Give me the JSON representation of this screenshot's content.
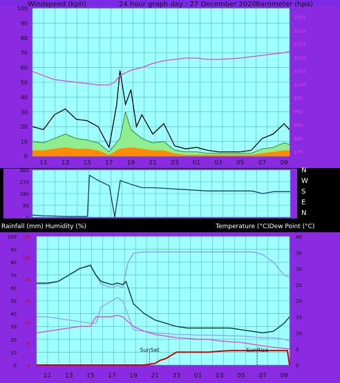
{
  "colors": {
    "frame": "#8A2BE2",
    "plot_bg": "#A0FFFF",
    "grid": "#4AB7B7",
    "header_bg": "#7B2BE6",
    "black_line": "#000000",
    "magenta": "#E040E0",
    "orange": "#FF8C00",
    "green": "#90EE90",
    "navy": "#1A3A6B",
    "light_blue": "#8FA8FF",
    "red": "#D00000",
    "dark_green": "#004030"
  },
  "chart_data": [
    {
      "type": "line",
      "title": "24 hour graph day : 27 December 2020",
      "ylabel_left": "Windspeed (kph)",
      "ylabel_right": "Barometer (hpa)",
      "x_ticks": [
        "11",
        "13",
        "15",
        "17",
        "19",
        "21",
        "23",
        "01",
        "03",
        "05",
        "07",
        "09"
      ],
      "y_left_ticks": [
        "100",
        "90",
        "80",
        "70",
        "60",
        "50",
        "40",
        "30",
        "20",
        "10",
        "0"
      ],
      "y_right_ticks": [
        "1025",
        "1020",
        "1015",
        "1010",
        "1005",
        "1000",
        "995",
        "990",
        "985",
        "980",
        "975"
      ],
      "ylim_left": [
        0,
        100
      ],
      "ylim_right": [
        972.5,
        1027.5
      ],
      "series": [
        {
          "key": "gust",
          "x": [
            10,
            11,
            12,
            13,
            14,
            15,
            16,
            17,
            17.7,
            18,
            18.5,
            19,
            19.5,
            20,
            21,
            22,
            23,
            24,
            25,
            26,
            27,
            28,
            29,
            30,
            31,
            32,
            33,
            33.5
          ],
          "values": [
            20,
            18,
            28,
            32,
            25,
            24,
            20,
            6,
            35,
            58,
            35,
            45,
            20,
            28,
            15,
            22,
            7,
            5,
            6,
            4,
            3,
            3,
            3,
            4,
            12,
            15,
            22,
            18
          ]
        },
        {
          "key": "average",
          "x": [
            10,
            11,
            12,
            13,
            14,
            15,
            16,
            17,
            18,
            18.5,
            19,
            20,
            21,
            22,
            23,
            24,
            25,
            26,
            27,
            28,
            29,
            30,
            31,
            32,
            33,
            33.5
          ],
          "values": [
            10,
            9,
            12,
            15,
            12,
            11,
            9,
            3,
            12,
            30,
            18,
            12,
            9,
            10,
            4,
            3,
            3,
            2,
            2,
            2,
            2,
            2,
            5,
            6,
            9,
            8
          ]
        },
        {
          "key": "low",
          "x": [
            10,
            11,
            12,
            13,
            14,
            15,
            16,
            17,
            18,
            19,
            20,
            21,
            22,
            23,
            24,
            25,
            26,
            27,
            28,
            29,
            30,
            31,
            32,
            33,
            33.5
          ],
          "values": [
            4,
            4,
            5,
            6,
            5,
            5,
            4,
            1,
            5,
            6,
            5,
            4,
            4,
            2,
            1,
            1,
            1,
            1,
            1,
            1,
            1,
            2,
            3,
            4,
            4
          ]
        },
        {
          "key": "barometer",
          "x": [
            10,
            11,
            12,
            13,
            14,
            15,
            16,
            17,
            17.5,
            18,
            19,
            20,
            21,
            22,
            23,
            24,
            25,
            26,
            27,
            28,
            29,
            30,
            31,
            32,
            33,
            33.5
          ],
          "values": [
            1004,
            1002.5,
            1001,
            1000.5,
            1000,
            999.5,
            999,
            999,
            1000,
            1002.5,
            1004.5,
            1005.5,
            1007,
            1008,
            1008.5,
            1009,
            1009,
            1008.5,
            1008.5,
            1008.7,
            1009,
            1009.5,
            1010,
            1010.5,
            1011,
            1011.5
          ]
        }
      ]
    },
    {
      "type": "line",
      "ylabel_right": [
        "N",
        "W",
        "S",
        "E",
        "N"
      ],
      "y_left_ticks": [
        "360",
        "270",
        "180",
        "90",
        "0"
      ],
      "ylim": [
        0,
        360
      ],
      "series": [
        {
          "key": "direction",
          "x": [
            10,
            11,
            12,
            13,
            14,
            15,
            15.2,
            16,
            17,
            17.5,
            18,
            19,
            20,
            21,
            22,
            23,
            24,
            25,
            26,
            27,
            28,
            29,
            30,
            31,
            32,
            33,
            33.5
          ],
          "values": [
            15,
            10,
            8,
            5,
            5,
            5,
            320,
            280,
            240,
            0,
            280,
            250,
            225,
            225,
            220,
            215,
            210,
            205,
            200,
            200,
            200,
            200,
            200,
            180,
            195,
            195,
            195
          ]
        }
      ]
    },
    {
      "type": "line",
      "ylabel_left": "Rainfall (mm)  Humidity (%)",
      "ylabel_right": "Temperature (°C)Dew Point (°C)",
      "x_ticks": [
        "11",
        "13",
        "15",
        "17",
        "19",
        "21",
        "23",
        "01",
        "03",
        "05",
        "07",
        "09"
      ],
      "y_left_ticks": [
        "100",
        "90",
        "80",
        "70",
        "60",
        "50",
        "40",
        "30",
        "20",
        "10",
        "0"
      ],
      "y_rain_ticks": [
        "30",
        "25",
        "20",
        "15",
        "10",
        "5",
        "0"
      ],
      "y_right_ticks": [
        "40",
        "35",
        "30",
        "25",
        "20",
        "15",
        "10",
        "5",
        "0"
      ],
      "ylim_left": [
        0,
        100
      ],
      "ylim_right": [
        0,
        40
      ],
      "annotations": [
        "SunSet",
        "SunRise"
      ],
      "series": [
        {
          "key": "humidity",
          "x": [
            10,
            11,
            12,
            13,
            14,
            15,
            15.5,
            16,
            17,
            17.5,
            18,
            18.5,
            19,
            20,
            21,
            22,
            23,
            24,
            25,
            26,
            27,
            28,
            29,
            30,
            31,
            32,
            33,
            33.5
          ],
          "values": [
            63,
            63,
            65,
            70,
            75,
            78,
            70,
            63,
            60,
            62,
            60,
            80,
            87,
            88,
            88,
            88,
            88,
            88,
            88,
            88,
            88,
            88,
            88,
            88,
            86,
            80,
            70,
            68
          ]
        },
        {
          "key": "temperature",
          "x": [
            10,
            11,
            12,
            13,
            14,
            15,
            15.5,
            16,
            17,
            17.5,
            18,
            19,
            20,
            21,
            22,
            23,
            24,
            25,
            26,
            27,
            28,
            29,
            30,
            31,
            32,
            33,
            33.5
          ],
          "values": [
            15,
            15,
            14.5,
            14,
            13.5,
            13,
            13,
            18,
            20,
            21,
            20,
            11,
            10.5,
            10,
            9.8,
            9.5,
            9.5,
            9.3,
            9.3,
            9.2,
            9.1,
            9,
            8.8,
            8.5,
            8.5,
            8,
            7.5
          ]
        },
        {
          "key": "dewpoint",
          "x": [
            10,
            11,
            12,
            13,
            14,
            15,
            15.5,
            16,
            17,
            17.5,
            18,
            19,
            20,
            21,
            22,
            23,
            24,
            25,
            26,
            27,
            28,
            29,
            30,
            31,
            32,
            33,
            33.5
          ],
          "values": [
            10,
            10.5,
            11,
            11.5,
            12,
            12,
            15,
            15,
            15,
            15.5,
            15,
            12,
            10.5,
            9.5,
            9,
            8.5,
            8.3,
            8,
            8,
            7.5,
            7.2,
            7,
            6.5,
            6,
            5.5,
            5.2,
            5
          ]
        },
        {
          "key": "dark_temp",
          "x": [
            10,
            11,
            12,
            13,
            14,
            15,
            15.5,
            16,
            17,
            17.5,
            18,
            18.3,
            19,
            20,
            21,
            22,
            23,
            24,
            25,
            26,
            27,
            28,
            29,
            30,
            31,
            32,
            33,
            33.5
          ],
          "values": [
            25.5,
            25.5,
            26,
            28,
            30,
            31,
            28,
            26,
            25,
            25.5,
            25,
            26,
            19,
            16,
            14,
            13,
            12,
            11.5,
            11.5,
            11.5,
            11.5,
            11.5,
            11,
            10.5,
            10,
            10.5,
            13,
            15
          ]
        },
        {
          "key": "rainfall",
          "x": [
            10,
            11,
            12,
            13,
            14,
            15,
            16,
            17,
            18,
            19,
            20,
            20.5,
            21,
            21.5,
            22,
            22.5,
            23,
            24,
            25,
            26,
            27,
            28,
            29,
            30,
            31,
            32,
            33,
            33.3,
            33.5
          ],
          "values": [
            0,
            0,
            0,
            0,
            0,
            0,
            0,
            0,
            0,
            0,
            0,
            0.3,
            0.5,
            1.5,
            2,
            3,
            4,
            4,
            4,
            4,
            4.3,
            4.5,
            4.5,
            4.5,
            4.5,
            4.5,
            4.5,
            4.5,
            0
          ]
        }
      ]
    }
  ]
}
